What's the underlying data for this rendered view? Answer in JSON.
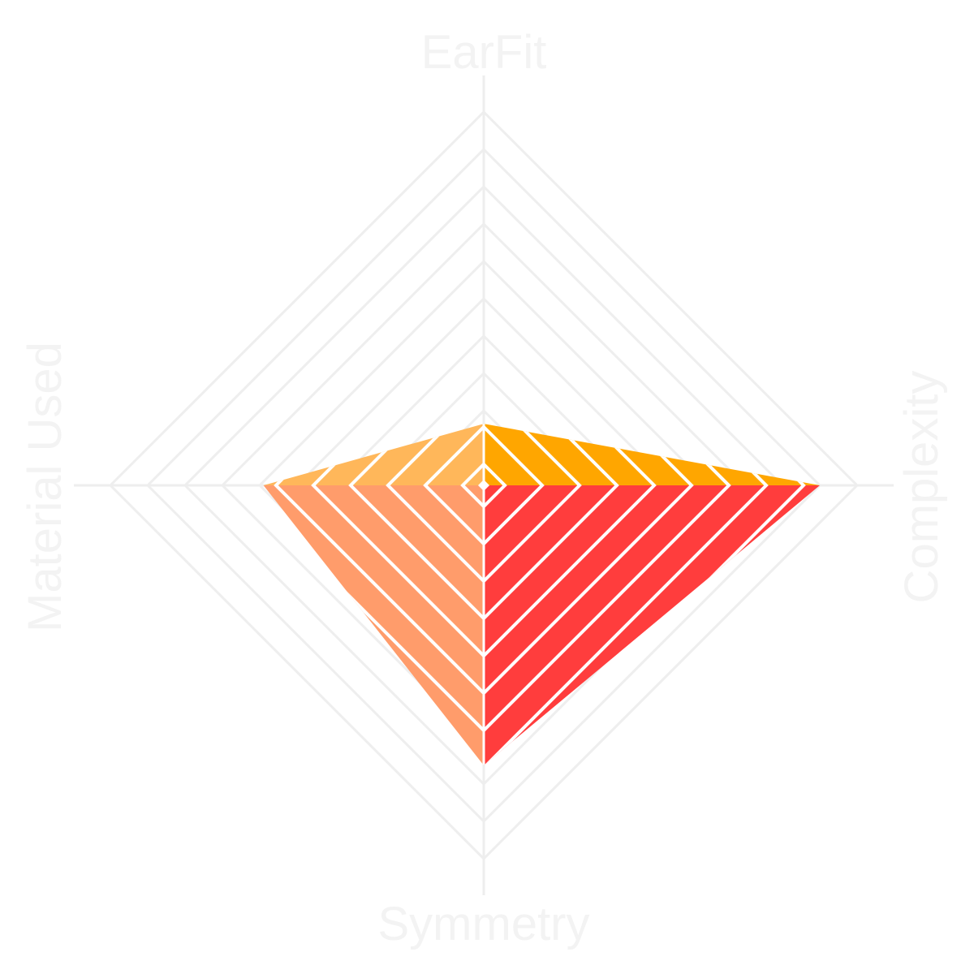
{
  "chart_data": {
    "type": "radar",
    "axes": [
      "EarFit",
      "Complexity",
      "Symmetry",
      "Material Used"
    ],
    "rings": 10,
    "max": 10,
    "grid": true,
    "quadrant_values": {
      "EarFit": 1.65,
      "Complexity": 9.0,
      "Symmetry": 7.5,
      "Material Used": 5.9
    },
    "colors": {
      "grid": "#eeeeee",
      "stripe": "#ffffff",
      "axis_label": "#f3f3f3",
      "earfit_complexity": "#ffa600",
      "earfit_material": "#ffb75a",
      "complexity_symmetry": "#ff3d3d",
      "symmetry_material": "#ff9c6b"
    }
  }
}
